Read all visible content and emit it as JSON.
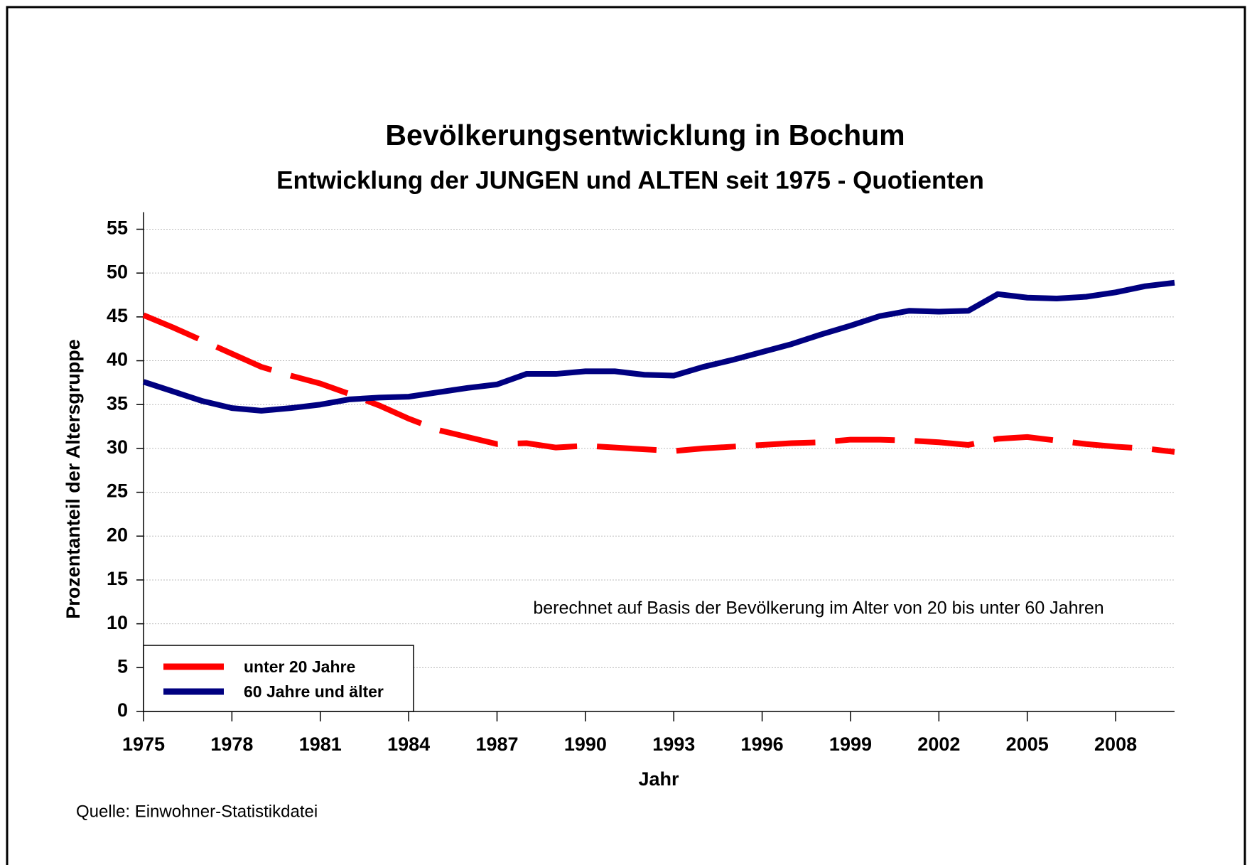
{
  "chart_data": {
    "type": "line",
    "title": "Bevölkerungsentwicklung in Bochum",
    "subtitle": "Entwicklung der JUNGEN und ALTEN seit 1975 - Quotienten",
    "x_label": "Jahr",
    "y_label": "Prozentanteil der Altersgruppe",
    "annotation": "berechnet auf Basis der Bevölkerung im Alter von 20 bis unter 60 Jahren",
    "source": "Quelle: Einwohner-Statistikdatei",
    "x": [
      1975,
      1976,
      1977,
      1978,
      1979,
      1980,
      1981,
      1982,
      1983,
      1984,
      1985,
      1986,
      1987,
      1988,
      1989,
      1990,
      1991,
      1992,
      1993,
      1994,
      1995,
      1996,
      1997,
      1998,
      1999,
      2000,
      2001,
      2002,
      2003,
      2004,
      2005,
      2006,
      2007,
      2008,
      2009,
      2010
    ],
    "series": [
      {
        "name": "unter 20 Jahre",
        "color": "#ff0000",
        "dashed": true,
        "values": [
          45.2,
          43.8,
          42.3,
          40.8,
          39.3,
          38.3,
          37.4,
          36.2,
          34.9,
          33.4,
          32.1,
          31.3,
          30.5,
          30.6,
          30.1,
          30.3,
          30.1,
          29.9,
          29.7,
          30.0,
          30.2,
          30.4,
          30.6,
          30.7,
          31.0,
          31.0,
          30.9,
          30.7,
          30.4,
          31.1,
          31.3,
          30.9,
          30.5,
          30.2,
          30.0,
          29.6
        ]
      },
      {
        "name": "60 Jahre und älter",
        "color": "#000080",
        "dashed": false,
        "values": [
          37.6,
          36.5,
          35.4,
          34.6,
          34.3,
          34.6,
          35.0,
          35.6,
          35.8,
          35.9,
          36.4,
          36.9,
          37.3,
          38.5,
          38.5,
          38.8,
          38.8,
          38.4,
          38.3,
          39.3,
          40.1,
          41.0,
          41.9,
          43.0,
          44.0,
          45.1,
          45.7,
          45.6,
          45.7,
          47.6,
          47.2,
          47.1,
          47.3,
          47.8,
          48.5,
          48.9
        ]
      }
    ],
    "xlim": [
      1975,
      2010
    ],
    "xticks": [
      1975,
      1978,
      1981,
      1984,
      1987,
      1990,
      1993,
      1996,
      1999,
      2002,
      2005,
      2008
    ],
    "ylim": [
      0,
      55
    ],
    "yticks": [
      0,
      5,
      10,
      15,
      20,
      25,
      30,
      35,
      40,
      45,
      50,
      55
    ],
    "grid": true,
    "legend": "lower left"
  }
}
